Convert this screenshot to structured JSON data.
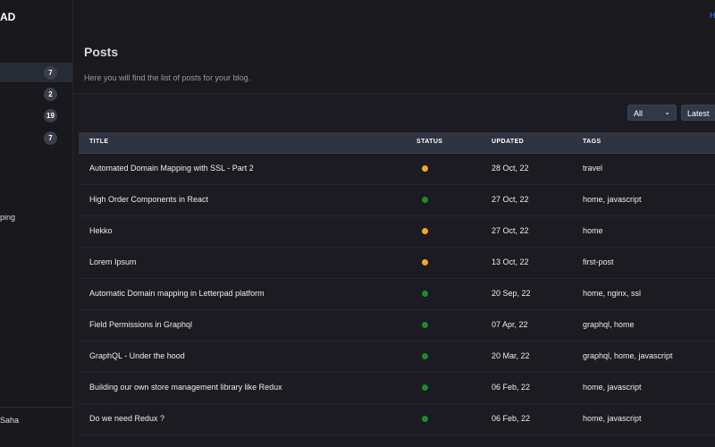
{
  "brand": "AD",
  "top_link": "H",
  "sidebar": {
    "badges": [
      "7",
      "2",
      "19",
      "7"
    ],
    "item": "ping",
    "user": "Saha"
  },
  "header": {
    "title": "Posts",
    "subtitle": "Here you will find the list of posts for your blog."
  },
  "filters": [
    "All",
    "Latest"
  ],
  "table": {
    "columns": [
      "TITLE",
      "STATUS",
      "UPDATED",
      "TAGS"
    ],
    "rows": [
      {
        "title": "Automated Domain Mapping with SSL - Part 2",
        "status_color": "#f5a623",
        "updated": "28 Oct, 22",
        "tags": "travel"
      },
      {
        "title": "High Order Components in React",
        "status_color": "#1f8a2a",
        "updated": "27 Oct, 22",
        "tags": "home, javascript"
      },
      {
        "title": "Hekko",
        "status_color": "#f5a623",
        "updated": "27 Oct, 22",
        "tags": "home"
      },
      {
        "title": "Lorem Ipsum",
        "status_color": "#f5a623",
        "updated": "13 Oct, 22",
        "tags": "first-post"
      },
      {
        "title": "Automatic Domain mapping in Letterpad platform",
        "status_color": "#1f8a2a",
        "updated": "20 Sep, 22",
        "tags": "home, nginx, ssl"
      },
      {
        "title": "Field Permissions in Graphql",
        "status_color": "#1f8a2a",
        "updated": "07 Apr, 22",
        "tags": "graphql, home"
      },
      {
        "title": "GraphQL - Under the hood",
        "status_color": "#1f8a2a",
        "updated": "20 Mar, 22",
        "tags": "graphql, home, javascript"
      },
      {
        "title": "Building our own store management library like Redux",
        "status_color": "#1f8a2a",
        "updated": "06 Feb, 22",
        "tags": "home, javascript"
      },
      {
        "title": "Do we need Redux ?",
        "status_color": "#1f8a2a",
        "updated": "06 Feb, 22",
        "tags": "home, javascript"
      }
    ]
  }
}
